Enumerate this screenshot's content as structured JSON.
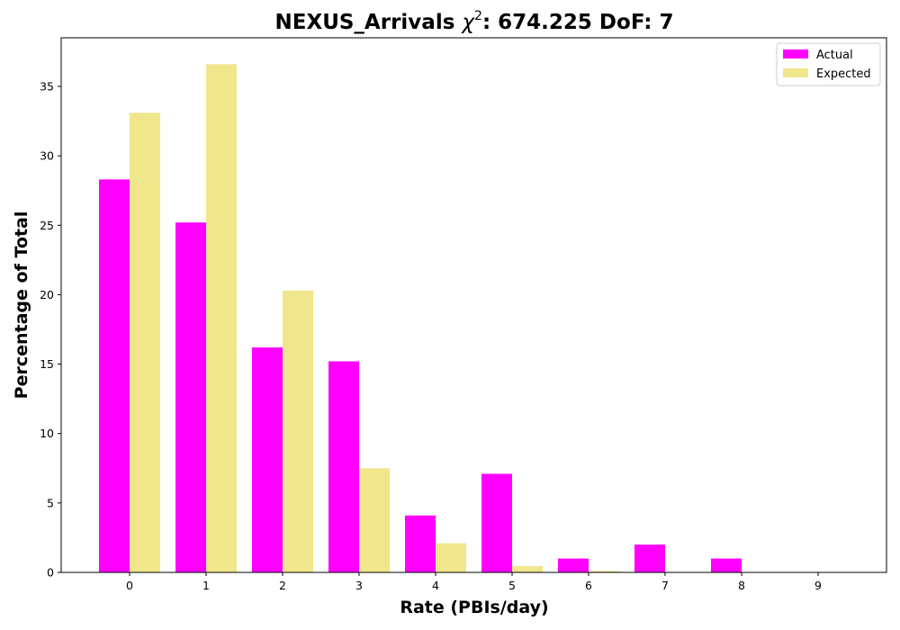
{
  "chart_data": {
    "type": "bar",
    "title": {
      "prefix": "NEXUS_Arrivals ",
      "chi_symbol": "χ",
      "chi_power": "2",
      "suffix": ": 674.225 DoF: 7"
    },
    "xlabel": "Rate (PBIs/day)",
    "ylabel": "Percentage of Total",
    "categories": [
      "0",
      "1",
      "2",
      "3",
      "4",
      "5",
      "6",
      "7",
      "8",
      "9"
    ],
    "series": [
      {
        "name": "Actual",
        "color": "#ff00ff",
        "values": [
          28.3,
          25.2,
          16.2,
          15.2,
          4.1,
          7.1,
          1.0,
          2.0,
          1.0,
          0
        ]
      },
      {
        "name": "Expected",
        "color": "#f0e68c",
        "values": [
          33.1,
          36.6,
          20.3,
          7.5,
          2.1,
          0.45,
          0.1,
          0,
          0,
          0
        ]
      }
    ],
    "ylim": [
      0,
      38.5
    ],
    "yticks": [
      0,
      5,
      10,
      15,
      20,
      25,
      30,
      35
    ],
    "grid": false,
    "legend_position": "top-right"
  }
}
